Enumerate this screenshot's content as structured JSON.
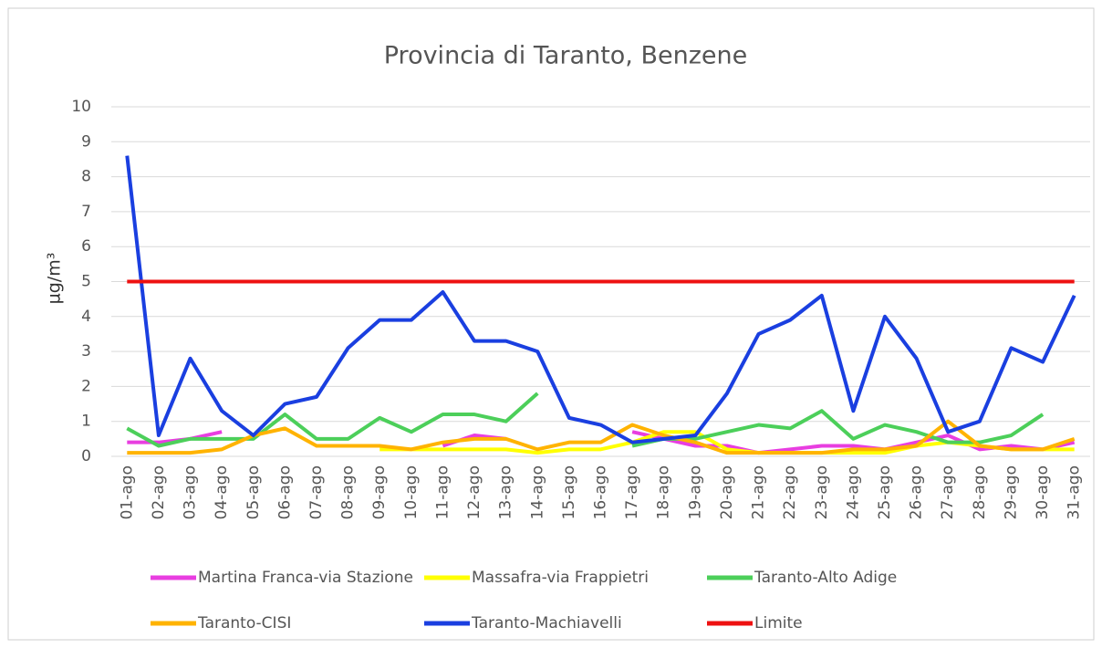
{
  "chart_data": {
    "type": "line",
    "title": "Provincia di Taranto, Benzene",
    "y_label": "µg/m³",
    "categories": [
      "01-ago",
      "02-ago",
      "03-ago",
      "04-ago",
      "05-ago",
      "06-ago",
      "07-ago",
      "08-ago",
      "09-ago",
      "10-ago",
      "11-ago",
      "12-ago",
      "13-ago",
      "14-ago",
      "15-ago",
      "16-ago",
      "17-ago",
      "18-ago",
      "19-ago",
      "20-ago",
      "21-ago",
      "22-ago",
      "23-ago",
      "24-ago",
      "25-ago",
      "26-ago",
      "27-ago",
      "28-ago",
      "29-ago",
      "30-ago",
      "31-ago"
    ],
    "ylim": [
      0,
      10
    ],
    "yticks": [
      0,
      1,
      2,
      3,
      4,
      5,
      6,
      7,
      8,
      9,
      10
    ],
    "grid": true,
    "series": [
      {
        "name": "Martina Franca-via Stazione",
        "color": "#e83ee0",
        "values": [
          0.4,
          0.4,
          0.5,
          0.7,
          null,
          null,
          null,
          null,
          null,
          null,
          0.3,
          0.6,
          0.5,
          null,
          null,
          null,
          0.7,
          0.5,
          0.3,
          0.3,
          0.1,
          0.2,
          0.3,
          0.3,
          0.2,
          0.4,
          0.6,
          0.2,
          0.3,
          0.2,
          0.4
        ]
      },
      {
        "name": "Massafra-via Frappietri",
        "color": "#ffff00",
        "values": [
          null,
          null,
          null,
          null,
          null,
          null,
          null,
          null,
          0.2,
          0.2,
          0.2,
          0.2,
          0.2,
          0.1,
          0.2,
          0.2,
          0.4,
          0.7,
          0.7,
          0.2,
          0.1,
          0.1,
          0.1,
          0.1,
          0.1,
          0.3,
          0.4,
          0.3,
          0.2,
          0.2,
          0.2
        ]
      },
      {
        "name": "Taranto-Alto Adige",
        "color": "#4ccf5a",
        "values": [
          0.8,
          0.3,
          0.5,
          0.5,
          0.5,
          1.2,
          0.5,
          0.5,
          1.1,
          0.7,
          1.2,
          1.2,
          1.0,
          1.8,
          null,
          null,
          0.3,
          0.5,
          0.5,
          0.7,
          0.9,
          0.8,
          1.3,
          0.5,
          0.9,
          0.7,
          0.4,
          0.4,
          0.6,
          1.2,
          null
        ]
      },
      {
        "name": "Taranto-CISI",
        "color": "#ffb300",
        "values": [
          0.1,
          0.1,
          0.1,
          0.2,
          0.6,
          0.8,
          0.3,
          0.3,
          0.3,
          0.2,
          0.4,
          0.5,
          0.5,
          0.2,
          0.4,
          0.4,
          0.9,
          0.6,
          0.4,
          0.1,
          0.1,
          0.1,
          0.1,
          0.2,
          0.2,
          0.3,
          1.0,
          0.3,
          0.2,
          0.2,
          0.5
        ]
      },
      {
        "name": "Taranto-Machiavelli",
        "color": "#1a3fe0",
        "values": [
          8.6,
          0.6,
          2.8,
          1.3,
          0.6,
          1.5,
          1.7,
          3.1,
          3.9,
          3.9,
          4.7,
          3.3,
          3.3,
          3.0,
          1.1,
          0.9,
          0.4,
          0.5,
          0.6,
          1.8,
          3.5,
          3.9,
          4.6,
          1.3,
          4.0,
          2.8,
          0.7,
          1.0,
          3.1,
          2.7,
          4.6
        ]
      },
      {
        "name": "Limite",
        "color": "#ee1111",
        "values": [
          5,
          5,
          5,
          5,
          5,
          5,
          5,
          5,
          5,
          5,
          5,
          5,
          5,
          5,
          5,
          5,
          5,
          5,
          5,
          5,
          5,
          5,
          5,
          5,
          5,
          5,
          5,
          5,
          5,
          5,
          5
        ]
      }
    ]
  }
}
